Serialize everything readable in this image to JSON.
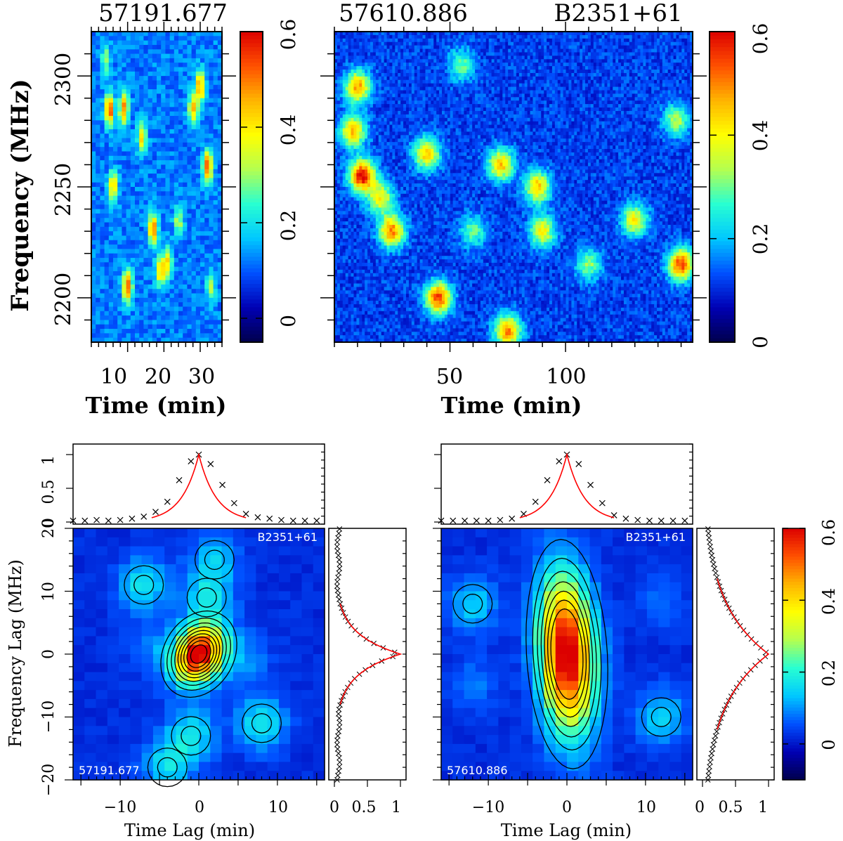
{
  "colormap": [
    "#00004c",
    "#0000b4",
    "#0050ff",
    "#00c8ff",
    "#28ffd2",
    "#b4ff50",
    "#ffff00",
    "#ffb400",
    "#ff5000",
    "#dc0000"
  ],
  "chart_data": [
    {
      "id": "dynspec-1",
      "type": "heatmap",
      "top_label": "57191.677",
      "xlabel": "Time (min)",
      "ylabel": "Frequency (MHz)",
      "xlim": [
        0,
        36
      ],
      "ylim": [
        2180,
        2320
      ],
      "x_ticks": [
        "10",
        "20",
        "30"
      ],
      "x_tick_values": [
        10,
        20,
        30
      ],
      "y_ticks": [
        "2200",
        "2250",
        "2300"
      ],
      "y_tick_values": [
        2200,
        2250,
        2300
      ],
      "colorbar": {
        "range": [
          -0.05,
          0.6
        ],
        "ticks": [
          "0",
          "0.2",
          "0.4",
          "0.6"
        ],
        "tick_values": [
          0,
          0.2,
          0.4,
          0.6
        ]
      },
      "scintles": [
        {
          "t": 5,
          "f": 2285,
          "v": 0.55
        },
        {
          "t": 6,
          "f": 2250,
          "v": 0.45
        },
        {
          "t": 9,
          "f": 2285,
          "v": 0.5
        },
        {
          "t": 10,
          "f": 2205,
          "v": 0.55
        },
        {
          "t": 14,
          "f": 2272,
          "v": 0.4
        },
        {
          "t": 17,
          "f": 2231,
          "v": 0.5
        },
        {
          "t": 19,
          "f": 2212,
          "v": 0.42
        },
        {
          "t": 21,
          "f": 2216,
          "v": 0.38
        },
        {
          "t": 28,
          "f": 2285,
          "v": 0.45
        },
        {
          "t": 30,
          "f": 2295,
          "v": 0.5
        },
        {
          "t": 32,
          "f": 2259,
          "v": 0.55
        },
        {
          "t": 4,
          "f": 2307,
          "v": 0.3
        },
        {
          "t": 24,
          "f": 2235,
          "v": 0.32
        },
        {
          "t": 33,
          "f": 2205,
          "v": 0.3
        }
      ]
    },
    {
      "id": "dynspec-2",
      "type": "heatmap",
      "top_label": "57610.886",
      "top_label_right": "B2351+61",
      "xlabel": "Time (min)",
      "ylabel": "",
      "xlim": [
        0,
        155
      ],
      "ylim": [
        2180,
        2320
      ],
      "x_ticks": [
        "50",
        "100"
      ],
      "x_tick_values": [
        50,
        100
      ],
      "y_ticks": [],
      "y_tick_values": [
        2200,
        2250,
        2300
      ],
      "colorbar": {
        "range": [
          0,
          0.6
        ],
        "ticks": [
          "0",
          "0.2",
          "0.4",
          "0.6"
        ],
        "tick_values": [
          0,
          0.2,
          0.4,
          0.6
        ]
      },
      "scintles": [
        {
          "t": 12,
          "f": 2255,
          "v": 0.6
        },
        {
          "t": 10,
          "f": 2295,
          "v": 0.48
        },
        {
          "t": 8,
          "f": 2275,
          "v": 0.45
        },
        {
          "t": 20,
          "f": 2245,
          "v": 0.4
        },
        {
          "t": 25,
          "f": 2230,
          "v": 0.5
        },
        {
          "t": 40,
          "f": 2265,
          "v": 0.45
        },
        {
          "t": 45,
          "f": 2200,
          "v": 0.55
        },
        {
          "t": 60,
          "f": 2230,
          "v": 0.3
        },
        {
          "t": 72,
          "f": 2260,
          "v": 0.45
        },
        {
          "t": 75,
          "f": 2185,
          "v": 0.5
        },
        {
          "t": 88,
          "f": 2250,
          "v": 0.45
        },
        {
          "t": 90,
          "f": 2230,
          "v": 0.4
        },
        {
          "t": 110,
          "f": 2215,
          "v": 0.32
        },
        {
          "t": 130,
          "f": 2235,
          "v": 0.4
        },
        {
          "t": 150,
          "f": 2215,
          "v": 0.55
        },
        {
          "t": 148,
          "f": 2280,
          "v": 0.35
        },
        {
          "t": 55,
          "f": 2305,
          "v": 0.3
        }
      ]
    },
    {
      "id": "acf-1",
      "type": "heatmap",
      "label_top_right": "B2351+61",
      "label_bottom_left": "57191.677",
      "xlabel": "Time Lag (min)",
      "ylabel": "Frequency Lag (MHz)",
      "xlim": [
        -16,
        16
      ],
      "ylim": [
        -20,
        20
      ],
      "x_ticks": [
        "−10",
        "0",
        "10"
      ],
      "x_tick_values": [
        -10,
        0,
        10
      ],
      "y_ticks": [
        "−20",
        "−10",
        "0",
        "10",
        "20"
      ],
      "y_tick_values": [
        -20,
        -10,
        0,
        10,
        20
      ],
      "peak": {
        "sigma_t": 2.2,
        "sigma_f": 3.2,
        "tilt": -0.45
      },
      "side_blobs": [
        {
          "t": -7,
          "f": 11,
          "v": 0.25
        },
        {
          "t": 1,
          "f": 9,
          "v": 0.22
        },
        {
          "t": 2,
          "f": 15,
          "v": 0.18
        },
        {
          "t": -1,
          "f": -13,
          "v": 0.25
        },
        {
          "t": 8,
          "f": -11,
          "v": 0.25
        },
        {
          "t": -4,
          "f": -18,
          "v": 0.22
        },
        {
          "t": 6,
          "f": -1,
          "v": 0.12
        },
        {
          "t": -6,
          "f": 1,
          "v": 0.1
        }
      ],
      "contour_levels": [
        0.1,
        0.2,
        0.3,
        0.4,
        0.5,
        0.6,
        0.7,
        0.8,
        0.9
      ],
      "time_profile": {
        "yticks": [
          "0",
          "0.5",
          "1"
        ],
        "ytick_values": [
          0,
          0.5,
          1
        ],
        "lags": [
          -16,
          -14.5,
          -13,
          -11.5,
          -10,
          -8.5,
          -7,
          -5.5,
          -4,
          -2.5,
          -1,
          0,
          1.5,
          3,
          4.5,
          6,
          7.5,
          9,
          10.5,
          12,
          13.5,
          15
        ],
        "values": [
          0.02,
          0.02,
          0.03,
          0.02,
          0.03,
          0.05,
          0.08,
          0.15,
          0.3,
          0.62,
          0.9,
          1.0,
          0.86,
          0.55,
          0.28,
          0.12,
          0.07,
          0.05,
          0.03,
          0.02,
          0.02,
          0.02
        ],
        "fit_sigma": 2.4
      },
      "freq_profile": {
        "xticks": [
          "0",
          "0.5",
          "1"
        ],
        "xtick_values": [
          0,
          0.5,
          1
        ],
        "fit_sigma": 3.3,
        "pattern": "flat-then-peak"
      }
    },
    {
      "id": "acf-2",
      "type": "heatmap",
      "label_top_right": "B2351+61",
      "label_bottom_left": "57610.886",
      "xlabel": "Time Lag (min)",
      "ylabel": "",
      "xlim": [
        -16,
        16
      ],
      "ylim": [
        -20,
        20
      ],
      "x_ticks": [
        "−10",
        "0",
        "10"
      ],
      "x_tick_values": [
        -10,
        0,
        10
      ],
      "y_ticks": [],
      "y_tick_values": [
        -20,
        -10,
        0,
        10,
        20
      ],
      "peak": {
        "sigma_t": 2.4,
        "sigma_f": 8.5,
        "tilt": 0.12
      },
      "side_blobs": [
        {
          "t": -12,
          "f": 8,
          "v": 0.2
        },
        {
          "t": 12,
          "f": -10,
          "v": 0.22
        },
        {
          "t": -12,
          "f": -5,
          "v": 0.1
        },
        {
          "t": 12,
          "f": 8,
          "v": 0.08
        }
      ],
      "contour_levels": [
        0.1,
        0.2,
        0.3,
        0.4,
        0.5,
        0.6,
        0.7
      ],
      "colorbar": {
        "range": [
          -0.1,
          0.6
        ],
        "ticks": [
          "0",
          "0.2",
          "0.4",
          "0.6"
        ],
        "tick_values": [
          0,
          0.2,
          0.4,
          0.6
        ]
      },
      "time_profile": {
        "yticks": [
          "0",
          "0.5",
          "1"
        ],
        "ytick_values": [
          0,
          0.5,
          1
        ],
        "lags": [
          -16,
          -14.5,
          -13,
          -11.5,
          -10,
          -8.5,
          -7,
          -5.5,
          -4,
          -2.5,
          -1,
          0,
          1.5,
          3,
          4.5,
          6,
          7.5,
          9,
          10.5,
          12,
          13.5,
          15
        ],
        "values": [
          0.02,
          0.02,
          0.02,
          0.02,
          0.02,
          0.03,
          0.05,
          0.12,
          0.3,
          0.62,
          0.9,
          1.0,
          0.86,
          0.55,
          0.28,
          0.1,
          0.05,
          0.03,
          0.02,
          0.02,
          0.02,
          0.02
        ],
        "fit_sigma": 2.4
      },
      "freq_profile": {
        "xticks": [
          "0",
          "0.5",
          "1"
        ],
        "xtick_values": [
          0,
          0.5,
          1
        ],
        "fit_sigma": 8.0,
        "pattern": "broad"
      }
    }
  ]
}
